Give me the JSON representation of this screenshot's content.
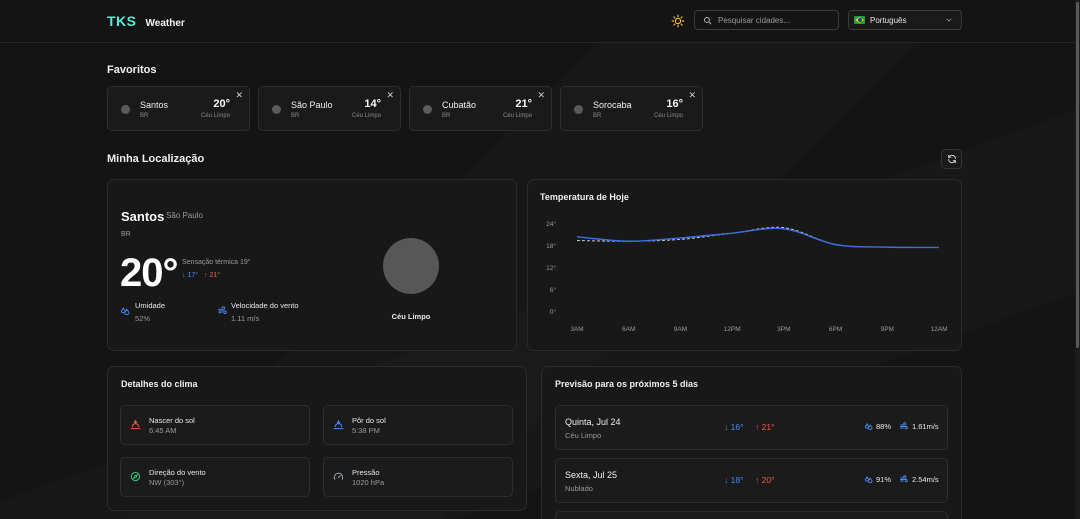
{
  "header": {
    "logo_mark": "TKS",
    "logo_text": "Weather",
    "search_placeholder": "Pesquisar cidades...",
    "language": "Português",
    "accent": "#5eead4"
  },
  "favorites": {
    "title": "Favoritos",
    "items": [
      {
        "city": "Santos",
        "country": "BR",
        "temp": "20°",
        "condition": "Céu Limpo"
      },
      {
        "city": "São Paulo",
        "country": "BR",
        "temp": "14°",
        "condition": "Céu Limpo"
      },
      {
        "city": "Cubatão",
        "country": "BR",
        "temp": "21°",
        "condition": "Céu Limpo"
      },
      {
        "city": "Sorocaba",
        "country": "BR",
        "temp": "16°",
        "condition": "Céu Limpo"
      }
    ]
  },
  "location": {
    "title": "Minha Localização",
    "city": "Santos",
    "region": "São Paulo",
    "country": "BR",
    "temp": "20°",
    "feels_like": "Sensação térmica 19°",
    "min": "17°",
    "max": "21°",
    "humidity_label": "Umidade",
    "humidity_value": "52%",
    "wind_label": "Velocidade do vento",
    "wind_value": "1.11 m/s",
    "condition": "Céu Limpo"
  },
  "chart_data": {
    "type": "line",
    "title": "Temperatura de Hoje",
    "x": [
      "3AM",
      "6AM",
      "9AM",
      "12PM",
      "3PM",
      "6PM",
      "9PM",
      "12AM"
    ],
    "y_ticks": [
      "24°",
      "18°",
      "12°",
      "6°",
      "0°"
    ],
    "ylim": [
      0,
      24
    ],
    "series": [
      {
        "style": "solid",
        "color": "#3b6fe0",
        "values": [
          20.5,
          19.3,
          20.2,
          21.5,
          22.7,
          18.4,
          17.7,
          17.6
        ]
      },
      {
        "style": "dashed",
        "color": "#c8c8c8",
        "values": [
          19.5,
          19.3,
          19.8,
          21.5,
          23.0,
          18.4,
          17.7,
          17.6
        ]
      }
    ],
    "grid": false
  },
  "details": {
    "title": "Detalhes do clima",
    "items": [
      {
        "label": "Nascer do sol",
        "value": "6:45 AM",
        "icon": "sunrise-icon",
        "color": "#f15a43"
      },
      {
        "label": "Pôr do sol",
        "value": "5:38 PM",
        "icon": "sunset-icon",
        "color": "#4a8bf5"
      },
      {
        "label": "Direção do vento",
        "value": "NW (303°)",
        "icon": "compass-icon",
        "color": "#34c77b"
      },
      {
        "label": "Pressão",
        "value": "1020 hPa",
        "icon": "gauge-icon",
        "color": "#9aa0b4"
      }
    ]
  },
  "forecast": {
    "title": "Previsão para os próximos 5 dias",
    "days": [
      {
        "day": "Quinta, Jul 24",
        "condition": "Céu Limpo",
        "min": "16°",
        "max": "21°",
        "humidity": "88%",
        "wind": "1.61m/s"
      },
      {
        "day": "Sexta, Jul 25",
        "condition": "Nublado",
        "min": "18°",
        "max": "20°",
        "humidity": "91%",
        "wind": "2.54m/s"
      }
    ]
  }
}
